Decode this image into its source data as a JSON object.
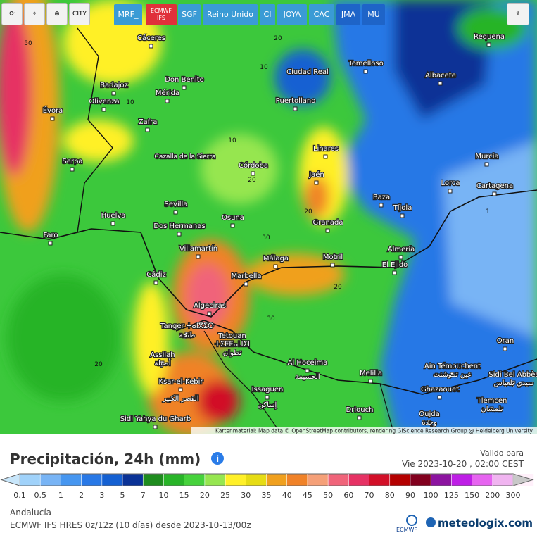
{
  "toolbar": {
    "icon_text": "CITY",
    "buttons": [
      "MRF_",
      "ECMWF IFS",
      "SGF",
      "Reino Unido",
      "CI",
      "JOYA",
      "CAC",
      "JMA",
      "MU"
    ]
  },
  "map": {
    "cities": [
      "Cáceres",
      "Requena",
      "Tomelloso",
      "Ciudad Real",
      "Don Benito",
      "Badajoz",
      "Mérida",
      "Albacete",
      "Olivenza",
      "Évora",
      "Puertollano",
      "Zafra",
      "Linares",
      "Murcia",
      "Cazalla de la Sierra",
      "Serpa",
      "Córdoba",
      "Jaén",
      "Lorca",
      "Cartagena",
      "Baza",
      "Sevilla",
      "Tíjola",
      "Huelva",
      "Osuna",
      "Granada",
      "Dos Hermanas",
      "Faro",
      "Almería",
      "Villamartín",
      "Málaga",
      "Motril",
      "El Ejido",
      "Cádiz",
      "Marbella",
      "Algeciras",
      "Tanger ⵜⴰⵏⴳⵉⵔ",
      "طنجة",
      "Tetouan",
      "ⵜⵉⵟⵟⴰⵡⵉⵏ",
      "تطوان",
      "Oran",
      "Assilah",
      "أصيلة",
      "Al Hoceima",
      "الحسيمة",
      "Ain Témouchent",
      "عين تموشنت",
      "Sidi Bel Abbès",
      "سيدي بلعباس",
      "Ksar-el-Kebir",
      "القصر الكبير",
      "Issaguen",
      "إساكن",
      "Melilla",
      "Ghazaouet",
      "Tlemcen",
      "تلمسان",
      "Driouch",
      "Oujda",
      "وجدة",
      "Sidi Yahya du Gharb"
    ],
    "contour_labels": [
      "50",
      "20",
      "10",
      "10",
      "10",
      "20",
      "20",
      "20",
      "1",
      "30",
      "20",
      "30"
    ],
    "attribution": "Kartenmaterial: Map data © OpenStreetMap contributors, rendering GIScience Research Group @ Heidelberg University"
  },
  "legend": {
    "title": "Precipitación, 24h (mm)",
    "valid_label": "Valido para",
    "valid_time": "Vie 2023-10-20 , 02:00 CEST",
    "labels": [
      0.1,
      0.5,
      1,
      2,
      3,
      5,
      7,
      10,
      15,
      20,
      25,
      30,
      35,
      40,
      45,
      50,
      60,
      70,
      80,
      90,
      100,
      125,
      150,
      200,
      300
    ],
    "colors": [
      "#c8e6fa",
      "#a0d2fa",
      "#78b4f5",
      "#4696f0",
      "#2878e6",
      "#1460d2",
      "#0a3296",
      "#1e8c1e",
      "#28b428",
      "#46d23c",
      "#96e650",
      "#fff028",
      "#e6dc14",
      "#f0a01e",
      "#f08228",
      "#f5a078",
      "#f0647a",
      "#e63264",
      "#d20f28",
      "#b40000",
      "#82001e",
      "#8c14a0",
      "#be1ee6",
      "#e664f0",
      "#f0b4f0",
      "#fff0fa",
      "#c8c8c8"
    ],
    "region": "Andalucía",
    "model": "ECMWF IFS HRES 0z/12z (10 días) desde 2023-10-13/00z",
    "logo_small": "ECMWF",
    "logo": "meteologix.com"
  }
}
